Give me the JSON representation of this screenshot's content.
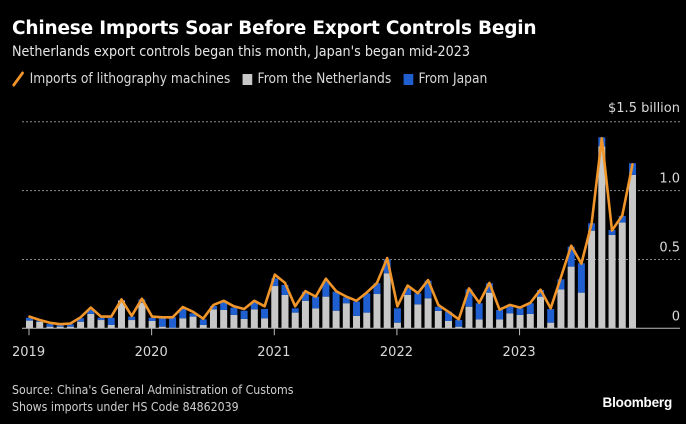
{
  "header": {
    "title": "Chinese Imports Soar Before Export Controls Begin",
    "subtitle": "Netherlands export controls began this month, Japan's began mid-2023"
  },
  "legend": [
    {
      "label": "Imports of lithography machines",
      "type": "line",
      "icon": "orange-line-swatch",
      "color": "#f0952a"
    },
    {
      "label": "From the Netherlands",
      "type": "bar",
      "icon": "gray-square-swatch",
      "color": "#c8c8c8"
    },
    {
      "label": "From Japan",
      "type": "bar",
      "icon": "blue-square-swatch",
      "color": "#1f5fcf"
    }
  ],
  "footer": {
    "source": "Source: China's General Administration of Customs",
    "note": "Shows imports under HS Code 84862039",
    "brand": "Bloomberg"
  },
  "chart_data": {
    "type": "bar",
    "stacked": true,
    "title": "Chinese Imports Soar Before Export Controls Begin",
    "subtitle": "Netherlands export controls began this month, Japan's began mid-2023",
    "xlabel": "",
    "ylabel": "$ billion",
    "ylim": [
      0,
      1.5
    ],
    "y_ticks": [
      {
        "value": 0,
        "label": "0"
      },
      {
        "value": 0.5,
        "label": "0.5"
      },
      {
        "value": 1.0,
        "label": "1.0"
      },
      {
        "value": 1.5,
        "label": "$1.5 billion"
      }
    ],
    "y_axis_side": "right",
    "grid": true,
    "legend_position": "top-left",
    "x_ticks": [
      {
        "index": 0,
        "label": "2019"
      },
      {
        "index": 12,
        "label": "2020"
      },
      {
        "index": 24,
        "label": "2021"
      },
      {
        "index": 36,
        "label": "2022"
      },
      {
        "index": 48,
        "label": "2023"
      }
    ],
    "categories": [
      "2019-01",
      "2019-02",
      "2019-03",
      "2019-04",
      "2019-05",
      "2019-06",
      "2019-07",
      "2019-08",
      "2019-09",
      "2019-10",
      "2019-11",
      "2019-12",
      "2020-01",
      "2020-02",
      "2020-03",
      "2020-04",
      "2020-05",
      "2020-06",
      "2020-07",
      "2020-08",
      "2020-09",
      "2020-10",
      "2020-11",
      "2020-12",
      "2021-01",
      "2021-02",
      "2021-03",
      "2021-04",
      "2021-05",
      "2021-06",
      "2021-07",
      "2021-08",
      "2021-09",
      "2021-10",
      "2021-11",
      "2021-12",
      "2022-01",
      "2022-02",
      "2022-03",
      "2022-04",
      "2022-05",
      "2022-06",
      "2022-07",
      "2022-08",
      "2022-09",
      "2022-10",
      "2022-11",
      "2022-12",
      "2023-01",
      "2023-02",
      "2023-03",
      "2023-04",
      "2023-05",
      "2023-06",
      "2023-07",
      "2023-08",
      "2023-09",
      "2023-10",
      "2023-11",
      "2023-12"
    ],
    "series": [
      {
        "name": "From the Netherlands",
        "type": "bar",
        "color": "#c8c8c8",
        "values": [
          0.056,
          0.048,
          0.012,
          0.012,
          0.012,
          0.048,
          0.104,
          0.06,
          0.024,
          0.2,
          0.06,
          0.186,
          0.053,
          0.012,
          0.0,
          0.073,
          0.085,
          0.024,
          0.138,
          0.133,
          0.097,
          0.068,
          0.138,
          0.073,
          0.307,
          0.242,
          0.114,
          0.2,
          0.145,
          0.23,
          0.128,
          0.182,
          0.09,
          0.114,
          0.249,
          0.4,
          0.041,
          0.242,
          0.174,
          0.218,
          0.126,
          0.053,
          0.012,
          0.157,
          0.065,
          0.259,
          0.065,
          0.109,
          0.097,
          0.104,
          0.23,
          0.041,
          0.283,
          0.448,
          0.259,
          0.709,
          1.32,
          0.678,
          0.768,
          1.114
        ]
      },
      {
        "name": "From Japan",
        "type": "bar",
        "color": "#1f5fcf",
        "values": [
          0.021,
          0.008,
          0.019,
          0.012,
          0.017,
          0.025,
          0.029,
          0.017,
          0.053,
          0.006,
          0.025,
          0.024,
          0.024,
          0.068,
          0.08,
          0.072,
          0.024,
          0.041,
          0.024,
          0.067,
          0.053,
          0.06,
          0.056,
          0.067,
          0.056,
          0.073,
          0.031,
          0.066,
          0.085,
          0.109,
          0.138,
          0.043,
          0.104,
          0.14,
          0.078,
          0.101,
          0.104,
          0.048,
          0.08,
          0.128,
          0.031,
          0.068,
          0.049,
          0.126,
          0.117,
          0.068,
          0.068,
          0.06,
          0.048,
          0.078,
          0.048,
          0.099,
          0.073,
          0.145,
          0.213,
          0.054,
          0.067,
          0.036,
          0.048,
          0.085
        ]
      },
      {
        "name": "Imports of lithography machines",
        "type": "line",
        "color": "#f0952a",
        "values": [
          0.085,
          0.06,
          0.04,
          0.03,
          0.035,
          0.08,
          0.15,
          0.085,
          0.085,
          0.21,
          0.09,
          0.215,
          0.085,
          0.08,
          0.08,
          0.155,
          0.12,
          0.07,
          0.17,
          0.2,
          0.16,
          0.14,
          0.2,
          0.16,
          0.39,
          0.33,
          0.16,
          0.27,
          0.23,
          0.36,
          0.27,
          0.23,
          0.2,
          0.26,
          0.33,
          0.51,
          0.16,
          0.31,
          0.255,
          0.35,
          0.17,
          0.12,
          0.065,
          0.29,
          0.185,
          0.33,
          0.135,
          0.17,
          0.15,
          0.185,
          0.28,
          0.145,
          0.37,
          0.6,
          0.47,
          0.76,
          1.38,
          0.71,
          0.82,
          1.19
        ]
      }
    ]
  }
}
